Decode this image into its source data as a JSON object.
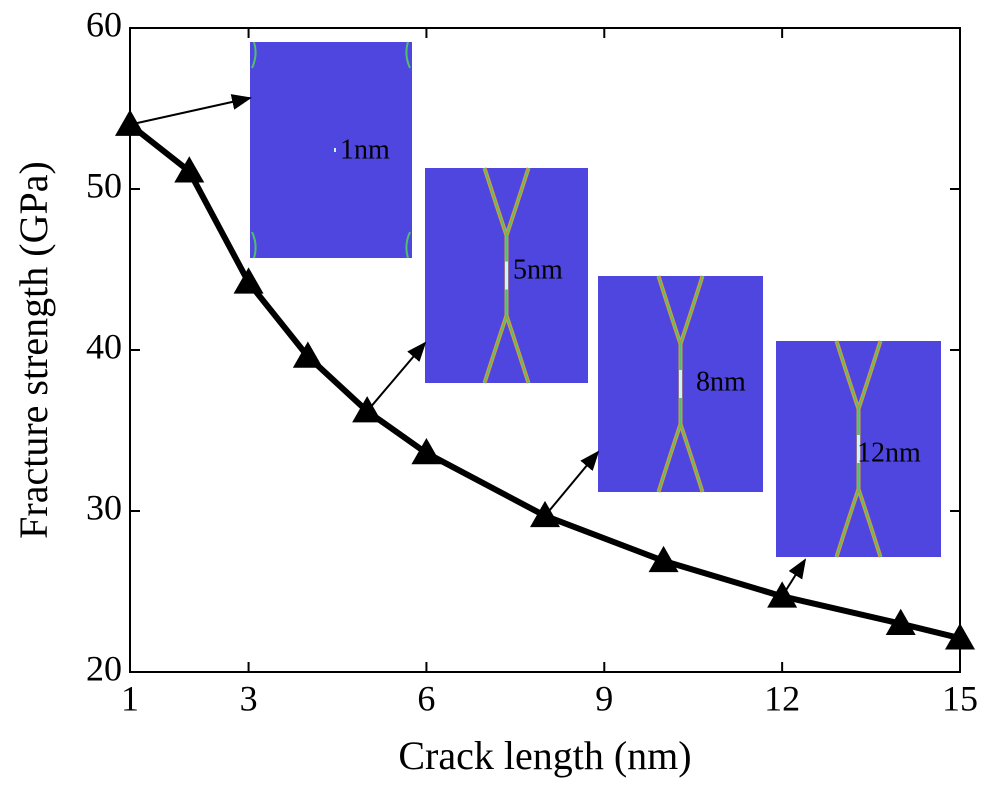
{
  "chart_data": {
    "type": "line",
    "x_label": "Crack length (nm)",
    "y_label": "Fracture strength (GPa)",
    "x": [
      1,
      2,
      3,
      4,
      5,
      6,
      8,
      10,
      12,
      14,
      15
    ],
    "series": [
      {
        "name": null,
        "color": "#000000",
        "values": [
          54.0,
          51.1,
          44.2,
          39.6,
          36.2,
          33.6,
          29.7,
          26.9,
          24.7,
          23.0,
          22.1
        ]
      }
    ],
    "xlim": [
      1,
      15
    ],
    "xticks": [
      1,
      3,
      6,
      9,
      12,
      15
    ],
    "ylim": [
      20,
      60
    ],
    "yticks": [
      20,
      30,
      40,
      50,
      60
    ],
    "annotations": [
      "1nm",
      "5nm",
      "8nm",
      "12nm"
    ]
  }
}
